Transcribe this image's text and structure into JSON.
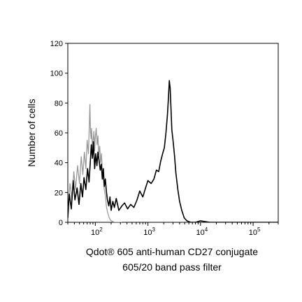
{
  "chart_data": {
    "type": "line",
    "title": "",
    "xlabel": "Qdot® 605 anti-human CD27 conjugate",
    "xlabel_line2": "605/20 band pass filter",
    "ylabel": "Number of cells",
    "xscale": "log",
    "xlim": [
      30,
      300000
    ],
    "ylim": [
      0,
      120
    ],
    "grid": false,
    "legend": "none",
    "x_ticks": [
      {
        "value": 100,
        "base": "10",
        "exponent": "2"
      },
      {
        "value": 1000,
        "base": "10",
        "exponent": "3"
      },
      {
        "value": 10000,
        "base": "10",
        "exponent": "4"
      },
      {
        "value": 100000,
        "base": "10",
        "exponent": "5"
      }
    ],
    "y_ticks": [
      "0",
      "20",
      "40",
      "60",
      "80",
      "100",
      "120"
    ],
    "y_tick_values": [
      0,
      20,
      40,
      60,
      80,
      100,
      120
    ],
    "series": [
      {
        "color": "#9a9a9a",
        "x": [
          30,
          33,
          36,
          39,
          42,
          46,
          50,
          54,
          58,
          62,
          66,
          70,
          74,
          77,
          79,
          81,
          83,
          85,
          88,
          91,
          94,
          97,
          100,
          104,
          108,
          112,
          116,
          121,
          126,
          131,
          136,
          142,
          148,
          155,
          162,
          170,
          180,
          190,
          200,
          215,
          230,
          250,
          280,
          320
        ],
        "y": [
          6,
          26,
          15,
          34,
          22,
          38,
          26,
          44,
          32,
          47,
          36,
          55,
          46,
          66,
          79,
          60,
          56,
          63,
          50,
          55,
          61,
          48,
          57,
          63,
          52,
          58,
          45,
          51,
          40,
          46,
          34,
          30,
          22,
          18,
          11,
          7,
          4,
          2,
          1,
          0.5,
          0,
          0,
          0,
          0
        ]
      },
      {
        "color": "#000000",
        "x": [
          30,
          32,
          35,
          38,
          41,
          45,
          49,
          53,
          57,
          61,
          66,
          71,
          76,
          80,
          84,
          88,
          92,
          97,
          102,
          107,
          112,
          118,
          124,
          130,
          136,
          142,
          148,
          155,
          162,
          170,
          180,
          190,
          200,
          215,
          230,
          250,
          280,
          320,
          360,
          410,
          470,
          540,
          620,
          700,
          800,
          900,
          1000,
          1150,
          1300,
          1450,
          1600,
          1750,
          1900,
          2050,
          2200,
          2350,
          2450,
          2550,
          2650,
          2750,
          2850,
          3000,
          3200,
          3400,
          3700,
          4000,
          4400,
          4900,
          5500,
          6500,
          8000,
          10000,
          15000,
          30000,
          100000,
          300000
        ],
        "y": [
          3,
          19,
          9,
          28,
          15,
          23,
          12,
          26,
          17,
          30,
          22,
          36,
          27,
          40,
          52,
          43,
          54,
          36,
          46,
          38,
          47,
          41,
          35,
          39,
          29,
          36,
          24,
          29,
          21,
          15,
          11,
          17,
          8,
          14,
          10,
          16,
          8,
          11,
          13,
          9,
          12,
          10,
          15,
          21,
          17,
          23,
          28,
          26,
          29,
          35,
          34,
          41,
          46,
          50,
          60,
          72,
          83,
          95,
          90,
          75,
          62,
          55,
          45,
          33,
          22,
          14,
          8,
          3,
          1,
          0,
          0,
          1,
          0,
          0,
          0,
          0
        ]
      }
    ]
  }
}
